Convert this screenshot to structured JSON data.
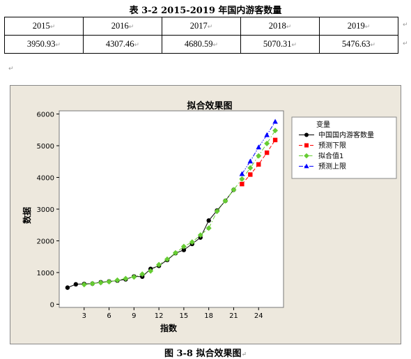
{
  "table": {
    "title": "表 3-2  2015-2019 年国内游客数量",
    "headers": [
      "2015",
      "2016",
      "2017",
      "2018",
      "2019"
    ],
    "values": [
      "3950.93",
      "4307.46",
      "4680.59",
      "5070.31",
      "5476.63"
    ]
  },
  "figure": {
    "caption": "图  3-8  拟合效果图"
  },
  "chart_data": {
    "type": "line",
    "title": "拟合效果图",
    "xlabel": "指数",
    "ylabel": "数据",
    "xlim": [
      0,
      27
    ],
    "ylim": [
      -100,
      6100
    ],
    "xticks": [
      3,
      6,
      9,
      12,
      15,
      18,
      21,
      24
    ],
    "yticks": [
      0,
      1000,
      2000,
      3000,
      4000,
      5000,
      6000
    ],
    "legend": {
      "title": "变量",
      "position": "right"
    },
    "series": [
      {
        "name": "中国国内游客数量",
        "color": "#000000",
        "marker": "circle",
        "dash": "solid",
        "x": [
          1,
          2,
          3,
          4,
          5,
          6,
          7,
          8,
          9,
          10,
          11,
          12,
          13,
          14,
          15,
          16,
          17,
          18,
          19,
          20,
          21
        ],
        "y": [
          524,
          629,
          640,
          650,
          694,
          719,
          744,
          784,
          878,
          870,
          1115,
          1212,
          1394,
          1610,
          1712,
          1902,
          2103,
          2641,
          2957,
          3262,
          3611
        ]
      },
      {
        "name": "预测下限",
        "color": "#ff0000",
        "marker": "square",
        "dash": "dash",
        "x": [
          22,
          23,
          24,
          25,
          26
        ],
        "y": [
          3790,
          4090,
          4410,
          4780,
          5180
        ]
      },
      {
        "name": "拟合值1",
        "color": "#66cc33",
        "marker": "diamond",
        "dash": "dashdot",
        "x": [
          3,
          4,
          5,
          6,
          7,
          8,
          9,
          10,
          11,
          12,
          13,
          14,
          15,
          16,
          17,
          18,
          19,
          20,
          21,
          22,
          23,
          24,
          25,
          26
        ],
        "y": [
          620,
          650,
          680,
          710,
          760,
          810,
          860,
          950,
          1050,
          1250,
          1420,
          1620,
          1820,
          1960,
          2180,
          2400,
          2930,
          3260,
          3610,
          3950,
          4300,
          4680,
          5070,
          5480
        ]
      },
      {
        "name": "预测上限",
        "color": "#0000ff",
        "marker": "triangle",
        "dash": "dashdotdot",
        "x": [
          22,
          23,
          24,
          25,
          26
        ],
        "y": [
          4110,
          4510,
          4950,
          5340,
          5760
        ]
      }
    ]
  }
}
